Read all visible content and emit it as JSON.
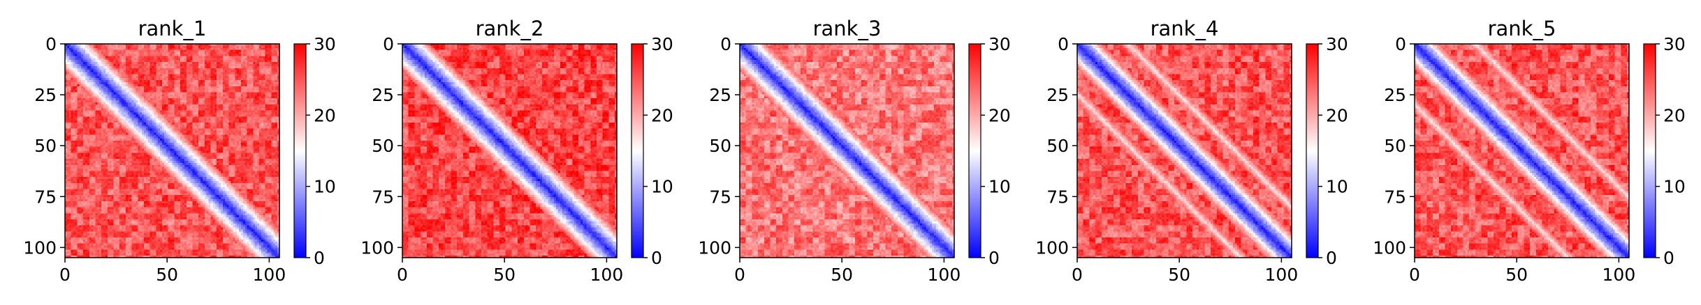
{
  "chart_data": [
    {
      "type": "heatmap",
      "title": "rank_1",
      "matrix_size": 106,
      "colorbar": {
        "ticks": [
          0,
          10,
          20,
          30
        ],
        "range": [
          0,
          30
        ],
        "colormap": "bwr"
      },
      "x_ticks": [
        0,
        50,
        100
      ],
      "y_ticks": [
        0,
        25,
        50,
        75,
        100
      ],
      "pattern": {
        "diagonal_band_width": 7,
        "off_diagonal_bands": [],
        "background_level": 25
      }
    },
    {
      "type": "heatmap",
      "title": "rank_2",
      "matrix_size": 106,
      "colorbar": {
        "ticks": [
          0,
          10,
          20,
          30
        ],
        "range": [
          0,
          30
        ],
        "colormap": "bwr"
      },
      "x_ticks": [
        0,
        50,
        100
      ],
      "y_ticks": [
        0,
        25,
        50,
        75,
        100
      ],
      "pattern": {
        "diagonal_band_width": 7,
        "off_diagonal_bands": [],
        "background_level": 26
      }
    },
    {
      "type": "heatmap",
      "title": "rank_3",
      "matrix_size": 106,
      "colorbar": {
        "ticks": [
          0,
          10,
          20,
          30
        ],
        "range": [
          0,
          30
        ],
        "colormap": "bwr"
      },
      "x_ticks": [
        0,
        50,
        100
      ],
      "y_ticks": [
        0,
        25,
        50,
        75,
        100
      ],
      "pattern": {
        "diagonal_band_width": 7,
        "off_diagonal_bands": [],
        "background_level": 23
      }
    },
    {
      "type": "heatmap",
      "title": "rank_4",
      "matrix_size": 106,
      "colorbar": {
        "ticks": [
          0,
          10,
          20,
          30
        ],
        "range": [
          0,
          30
        ],
        "colormap": "bwr"
      },
      "x_ticks": [
        0,
        50,
        100
      ],
      "y_ticks": [
        0,
        25,
        50,
        75,
        100
      ],
      "pattern": {
        "diagonal_band_width": 6,
        "off_diagonal_bands": [
          25
        ],
        "background_level": 25
      }
    },
    {
      "type": "heatmap",
      "title": "rank_5",
      "matrix_size": 106,
      "colorbar": {
        "ticks": [
          0,
          10,
          20,
          30
        ],
        "range": [
          0,
          30
        ],
        "colormap": "bwr"
      },
      "x_ticks": [
        0,
        50,
        100
      ],
      "y_ticks": [
        0,
        25,
        50,
        75,
        100
      ],
      "pattern": {
        "diagonal_band_width": 6,
        "off_diagonal_bands": [
          30
        ],
        "background_level": 25
      }
    }
  ],
  "colors": {
    "low": "#0000ff",
    "mid": "#ffffff",
    "high": "#ff0000"
  }
}
